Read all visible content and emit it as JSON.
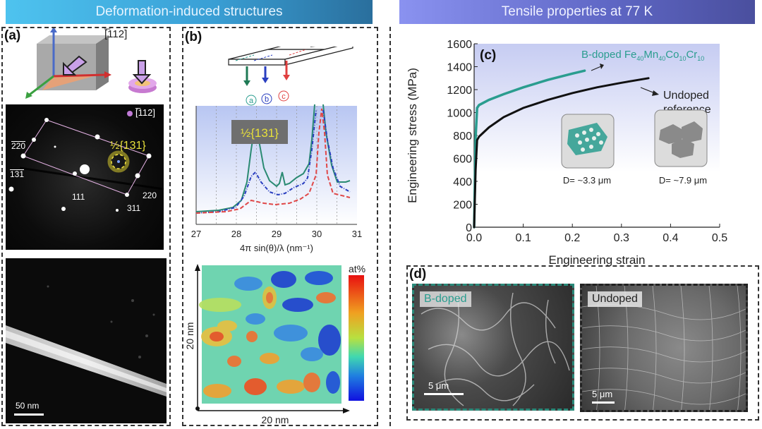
{
  "banners": {
    "left": "Deformation-induced structures",
    "right": "Tensile properties at 77 K"
  },
  "panel_a": {
    "label": "(a)",
    "zone_axis_top": "[̅112]",
    "zone_axis_diffraction": "[̅112]",
    "superlattice_label": "½{131}",
    "spot_labels": [
      "̅220",
      "̅131",
      "1̅1̅1",
      "220",
      "311"
    ],
    "spot_label_text": {
      "s220bar": "220",
      "s131bar": "131",
      "s111": "111",
      "s220": "220",
      "s311": "311"
    },
    "scale_bar": "50 nm"
  },
  "panel_b": {
    "label": "(b)",
    "region_markers": [
      "a",
      "b",
      "c"
    ],
    "peak_label": "½{131}",
    "xlabel": "4π sin(θ)/λ (nm⁻¹)",
    "x_ticks": [
      "27",
      "28",
      "29",
      "30",
      "31"
    ],
    "map_size_x": "20 nm",
    "map_size_y": "20 nm",
    "colorbar_label": "at%"
  },
  "chart_data": {
    "type": "line",
    "title": "(c)",
    "xlabel": "Engineering strain",
    "ylabel": "Engineering stress (MPa)",
    "xlim": [
      0,
      0.5
    ],
    "ylim": [
      0,
      1600
    ],
    "x_ticks": [
      "0.0",
      "0.1",
      "0.2",
      "0.3",
      "0.4",
      "0.5"
    ],
    "y_ticks": [
      "0",
      "200",
      "400",
      "600",
      "800",
      "1000",
      "1200",
      "1400",
      "1600"
    ],
    "series": [
      {
        "name": "B-doped Fe40Mn40Co10Cr10",
        "color": "#2a9d8f",
        "x": [
          0,
          0.003,
          0.006,
          0.01,
          0.03,
          0.06,
          0.1,
          0.15,
          0.2,
          0.225
        ],
        "y": [
          0,
          780,
          1040,
          1065,
          1110,
          1160,
          1220,
          1285,
          1340,
          1365
        ]
      },
      {
        "name": "Undoped reference",
        "color": "#111111",
        "x": [
          0,
          0.003,
          0.006,
          0.01,
          0.03,
          0.06,
          0.1,
          0.15,
          0.2,
          0.25,
          0.3,
          0.355
        ],
        "y": [
          0,
          500,
          760,
          790,
          870,
          960,
          1040,
          1110,
          1170,
          1220,
          1260,
          1300
        ]
      }
    ],
    "legend": {
      "doped_prefix": "B-doped Fe",
      "doped_sub1": "40",
      "doped_mn": "Mn",
      "doped_sub2": "40",
      "doped_co": "Co",
      "doped_sub3": "10",
      "doped_cr": "Cr",
      "doped_sub4": "10",
      "undoped_line1": "Undoped",
      "undoped_line2": "reference"
    },
    "annotations": [
      "D= ~3.3 μm",
      "D= ~7.9 μm"
    ]
  },
  "panel_d": {
    "label": "(d)",
    "left_label": "B-doped",
    "right_label": "Undoped",
    "left_scale": "5 μm",
    "right_scale": "5 μm"
  },
  "colors": {
    "teal": "#2a9d8f",
    "blue_banner": "#3aa0d6",
    "purple_banner": "#6068c8",
    "yellow": "#e8e03a"
  }
}
